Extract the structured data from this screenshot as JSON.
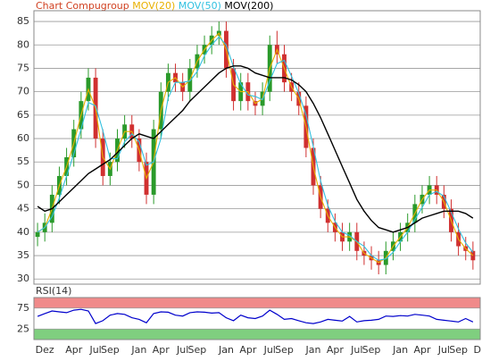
{
  "chart_data": [
    {
      "type": "candlestick",
      "title": "Chart Compugroup",
      "title_color": "#d04020",
      "x": [
        0,
        1,
        2,
        3,
        4,
        5,
        6,
        7,
        8,
        9,
        10,
        11,
        12,
        13,
        14,
        15,
        16,
        17,
        18,
        19,
        20,
        21,
        22,
        23,
        24,
        25,
        26,
        27,
        28,
        29,
        30,
        31,
        32,
        33,
        34,
        35,
        36,
        37,
        38,
        39,
        40,
        41,
        42,
        43,
        44,
        45,
        46,
        47,
        48,
        49,
        50,
        51,
        52,
        53,
        54,
        55,
        56,
        57,
        58,
        59,
        60
      ],
      "open": [
        39,
        40,
        42,
        48,
        52,
        56,
        62,
        68,
        73,
        60,
        52,
        55,
        60,
        63,
        60,
        55,
        48,
        62,
        70,
        74,
        72,
        70,
        75,
        78,
        80,
        82,
        83,
        75,
        68,
        72,
        68,
        67,
        70,
        80,
        78,
        72,
        70,
        67,
        58,
        50,
        45,
        42,
        40,
        38,
        40,
        36,
        35,
        34,
        33,
        36,
        38,
        40,
        42,
        46,
        48,
        50,
        48,
        45,
        40,
        37,
        36
      ],
      "high": [
        42,
        44,
        50,
        54,
        58,
        64,
        70,
        75,
        75,
        62,
        57,
        62,
        65,
        65,
        62,
        57,
        64,
        72,
        76,
        76,
        74,
        77,
        80,
        82,
        84,
        85,
        85,
        77,
        74,
        74,
        70,
        72,
        82,
        83,
        80,
        74,
        72,
        69,
        60,
        52,
        47,
        44,
        42,
        42,
        42,
        38,
        37,
        36,
        38,
        40,
        42,
        44,
        48,
        50,
        52,
        52,
        50,
        47,
        42,
        39,
        38
      ],
      "low": [
        37,
        38,
        40,
        46,
        50,
        54,
        60,
        66,
        58,
        50,
        50,
        53,
        58,
        58,
        53,
        46,
        46,
        60,
        68,
        70,
        68,
        68,
        73,
        76,
        78,
        80,
        73,
        66,
        66,
        66,
        65,
        65,
        68,
        76,
        70,
        68,
        65,
        56,
        48,
        43,
        40,
        38,
        36,
        36,
        34,
        33,
        32,
        31,
        31,
        34,
        36,
        38,
        40,
        44,
        46,
        46,
        43,
        38,
        35,
        34,
        32
      ],
      "close": [
        40,
        42,
        48,
        52,
        56,
        62,
        68,
        73,
        60,
        52,
        55,
        60,
        63,
        60,
        55,
        48,
        62,
        70,
        74,
        72,
        70,
        75,
        78,
        80,
        82,
        83,
        75,
        68,
        72,
        68,
        67,
        70,
        80,
        78,
        72,
        70,
        67,
        58,
        50,
        45,
        42,
        40,
        38,
        40,
        36,
        35,
        34,
        33,
        36,
        38,
        40,
        42,
        46,
        48,
        50,
        48,
        45,
        40,
        37,
        36,
        34
      ],
      "up_color": "#2a9a2a",
      "down_color": "#d03030",
      "series": [
        {
          "name": "MOV(20)",
          "color": "#e8b000",
          "values": [
            40,
            41,
            45,
            50,
            54,
            59,
            65,
            70.5,
            66.5,
            56,
            53.5,
            57.5,
            61.5,
            61.5,
            57.5,
            51.5,
            55,
            66,
            72,
            73,
            71,
            72.5,
            76.5,
            79,
            81,
            82.5,
            79,
            71.5,
            70,
            70,
            67.5,
            68.5,
            75,
            79,
            75,
            71,
            68.5,
            62.5,
            54,
            47.5,
            43.5,
            41,
            39,
            39,
            38,
            35.5,
            34.5,
            33.5,
            34.5,
            37,
            39,
            41,
            44,
            47,
            49,
            49,
            46.5,
            42.5,
            38.5,
            36.5,
            35
          ]
        },
        {
          "name": "MOV(50)",
          "color": "#30c0e0",
          "values": [
            40,
            41,
            43.3,
            47.3,
            52,
            56.7,
            62,
            67.7,
            67,
            61.7,
            55.7,
            55.7,
            59.3,
            61,
            59.3,
            54.3,
            55,
            60,
            68.7,
            72,
            72,
            72.3,
            74.3,
            77.7,
            80,
            81.7,
            80,
            75.3,
            71.7,
            69.3,
            69,
            68.3,
            72.3,
            76,
            76.7,
            73.3,
            69.7,
            65,
            58.3,
            51,
            45.7,
            42.3,
            40,
            39.3,
            38,
            37,
            35,
            34,
            34.3,
            35.7,
            38,
            40,
            42.7,
            45.3,
            48,
            48.7,
            47.7,
            44.3,
            40.7,
            37.7,
            35.7
          ]
        },
        {
          "name": "MOV(200)",
          "color": "#000000",
          "values": [
            45.5,
            44.5,
            45,
            46.5,
            48,
            49.5,
            51,
            52.5,
            53.5,
            54.5,
            55.5,
            57,
            58.5,
            60,
            61,
            60.5,
            60,
            61.5,
            63,
            64.5,
            66,
            68,
            69.5,
            71,
            72.5,
            74,
            75,
            75.5,
            75.5,
            75,
            74,
            73.5,
            73,
            73,
            73,
            72.5,
            71.5,
            70,
            67.5,
            64.5,
            61,
            57.5,
            54,
            50.5,
            47,
            44.5,
            42.5,
            41,
            40.5,
            40,
            40.5,
            41,
            42,
            43,
            43.5,
            44,
            44.5,
            44.5,
            44.5,
            44,
            43
          ]
        }
      ],
      "xlim": [
        -0.5,
        61
      ],
      "ylim": [
        28.9,
        87.3
      ],
      "yticks": [
        30,
        35,
        40,
        45,
        50,
        55,
        60,
        65,
        70,
        75,
        80,
        85
      ],
      "grid": true
    },
    {
      "type": "line",
      "title": "RSI(14)",
      "x": [
        0,
        1,
        2,
        3,
        4,
        5,
        6,
        7,
        8,
        9,
        10,
        11,
        12,
        13,
        14,
        15,
        16,
        17,
        18,
        19,
        20,
        21,
        22,
        23,
        24,
        25,
        26,
        27,
        28,
        29,
        30,
        31,
        32,
        33,
        34,
        35,
        36,
        37,
        38,
        39,
        40,
        41,
        42,
        43,
        44,
        45,
        46,
        47,
        48,
        49,
        50,
        51,
        52,
        53,
        54,
        55,
        56,
        57,
        58,
        59,
        60
      ],
      "values": [
        55,
        62,
        68,
        66,
        64,
        70,
        72,
        68,
        38,
        45,
        58,
        62,
        60,
        52,
        48,
        40,
        62,
        66,
        65,
        58,
        56,
        64,
        66,
        65,
        63,
        64,
        52,
        45,
        58,
        52,
        50,
        56,
        70,
        60,
        48,
        50,
        45,
        40,
        38,
        42,
        48,
        46,
        44,
        55,
        42,
        45,
        46,
        48,
        56,
        55,
        57,
        56,
        60,
        58,
        56,
        48,
        46,
        44,
        42,
        50,
        42
      ],
      "color": "#0000cc",
      "bands": [
        {
          "from": 75,
          "to": 100,
          "color": "#f08a8a"
        },
        {
          "from": 0,
          "to": 25,
          "color": "#7fcf7f"
        }
      ],
      "xlim": [
        -0.5,
        61
      ],
      "ylim": [
        0,
        100
      ],
      "yticks": [
        25,
        75
      ],
      "xticks": [
        {
          "value": 1,
          "label": "Dez"
        },
        {
          "value": 5,
          "label": "Apr"
        },
        {
          "value": 8,
          "label": "Jul"
        },
        {
          "value": 10,
          "label": "Sep"
        },
        {
          "value": 14,
          "label": "Jan"
        },
        {
          "value": 17,
          "label": "Apr"
        },
        {
          "value": 20,
          "label": "Jul"
        },
        {
          "value": 22,
          "label": "Sep"
        },
        {
          "value": 26,
          "label": "Jan"
        },
        {
          "value": 29,
          "label": "Apr"
        },
        {
          "value": 32,
          "label": "Jul"
        },
        {
          "value": 34,
          "label": "Sep"
        },
        {
          "value": 38,
          "label": "Jan"
        },
        {
          "value": 41,
          "label": "Apr"
        },
        {
          "value": 44,
          "label": "Jul"
        },
        {
          "value": 46,
          "label": "Sep"
        },
        {
          "value": 50,
          "label": "Jan"
        },
        {
          "value": 53,
          "label": "Apr"
        },
        {
          "value": 56,
          "label": "Jul"
        },
        {
          "value": 58,
          "label": "Sep"
        },
        {
          "value": 61,
          "label": "D"
        }
      ]
    }
  ]
}
